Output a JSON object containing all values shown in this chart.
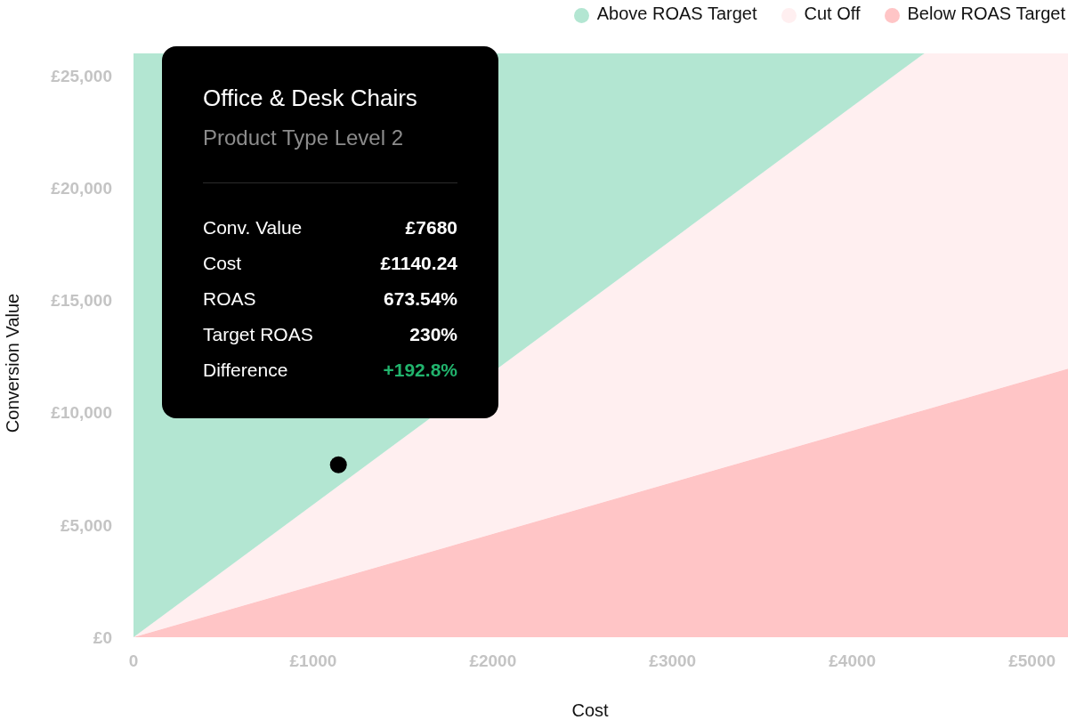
{
  "chart_data": {
    "type": "area",
    "stacked": true,
    "xlabel": "Cost",
    "ylabel": "Conversion Value",
    "x": [
      0,
      4400,
      5200
    ],
    "series": [
      {
        "name": "Below ROAS Target",
        "color": "#ffc5c6",
        "values": [
          0,
          10120,
          11960
        ]
      },
      {
        "name": "Cut Off",
        "color": "#ffeff0",
        "values": [
          0,
          15880,
          14040
        ]
      },
      {
        "name": "Above ROAS Target",
        "color": "#b3e6d2",
        "values": [
          26000,
          0,
          null
        ]
      },
      {
        "type": "scatter",
        "color": "#000000",
        "x": [
          1140.24
        ],
        "values": [
          7680
        ],
        "marker": "circle"
      }
    ],
    "xlim": [
      0,
      5200
    ],
    "xticks": [
      {
        "value": 0,
        "label": "0"
      },
      {
        "value": 1000,
        "label": "£1000"
      },
      {
        "value": 2000,
        "label": "£2000"
      },
      {
        "value": 3000,
        "label": "£3000"
      },
      {
        "value": 4000,
        "label": "£4000"
      },
      {
        "value": 5000,
        "label": "£5000"
      }
    ],
    "ylim": [
      0,
      26000
    ],
    "yticks": [
      {
        "value": 0,
        "label": "£0"
      },
      {
        "value": 5000,
        "label": "£5,000"
      },
      {
        "value": 10000,
        "label": "£10,000"
      },
      {
        "value": 15000,
        "label": "£15,000"
      },
      {
        "value": 20000,
        "label": "£20,000"
      },
      {
        "value": 25000,
        "label": "£25,000"
      }
    ],
    "legend": "top right",
    "annotations": [
      "Office & Desk Chairs",
      "Product Type Level 2",
      "Conv. Value",
      "£7680",
      "Cost",
      "£1140.24",
      "ROAS",
      "673.54%",
      "Target ROAS",
      "230%",
      "Difference",
      "+192.8%"
    ]
  }
}
